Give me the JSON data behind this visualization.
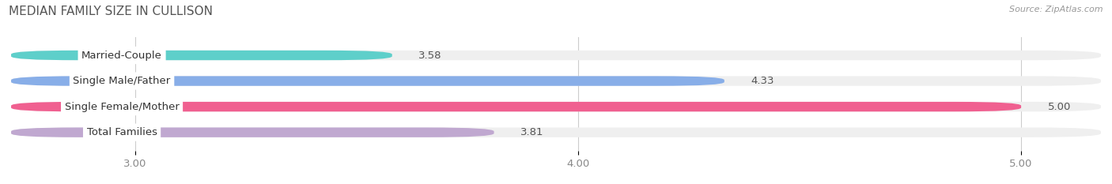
{
  "title": "MEDIAN FAMILY SIZE IN CULLISON",
  "source": "Source: ZipAtlas.com",
  "categories": [
    "Married-Couple",
    "Single Male/Father",
    "Single Female/Mother",
    "Total Families"
  ],
  "values": [
    3.58,
    4.33,
    5.0,
    3.81
  ],
  "bar_colors": [
    "#5ecfca",
    "#88aee8",
    "#f06090",
    "#c0a8d0"
  ],
  "bar_bg_colors": [
    "#efefef",
    "#efefef",
    "#efefef",
    "#efefef"
  ],
  "xlim_min": 2.72,
  "xlim_max": 5.18,
  "xticks": [
    3.0,
    4.0,
    5.0
  ],
  "xtick_labels": [
    "3.00",
    "4.00",
    "5.00"
  ],
  "label_fontsize": 9.5,
  "title_fontsize": 11,
  "value_fontsize": 9.5,
  "bar_height": 0.38,
  "background_color": "#ffffff",
  "rounding_size": 0.15
}
